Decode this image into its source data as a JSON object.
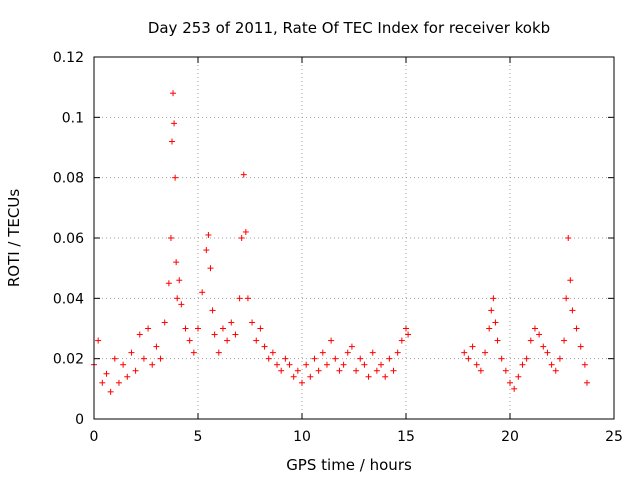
{
  "chart_data": {
    "type": "scatter",
    "title": "Day 253 of 2011, Rate Of TEC Index for receiver kokb",
    "xlabel": "GPS time / hours",
    "ylabel": "ROTI / TECUs",
    "xlim": [
      0,
      25
    ],
    "ylim": [
      0,
      0.12
    ],
    "xticks": [
      "0",
      "5",
      "10",
      "15",
      "20",
      "25"
    ],
    "yticks": [
      "0",
      "0.02",
      "0.04",
      "0.06",
      "0.08",
      "0.1",
      "0.12"
    ],
    "grid": true,
    "marker": "+",
    "series_color": "#ff0000",
    "series": [
      {
        "name": "",
        "x": [
          0.0,
          0.2,
          0.4,
          0.6,
          0.8,
          1.0,
          1.2,
          1.4,
          1.6,
          1.8,
          2.0,
          2.2,
          2.4,
          2.6,
          2.8,
          3.0,
          3.2,
          3.4,
          3.6,
          3.7,
          3.75,
          3.8,
          3.85,
          3.9,
          3.95,
          4.0,
          4.1,
          4.2,
          4.4,
          4.6,
          4.8,
          5.0,
          5.2,
          5.4,
          5.5,
          5.6,
          5.7,
          5.8,
          6.0,
          6.2,
          6.4,
          6.6,
          6.8,
          7.0,
          7.1,
          7.2,
          7.3,
          7.4,
          7.6,
          7.8,
          8.0,
          8.2,
          8.4,
          8.6,
          8.8,
          9.0,
          9.2,
          9.4,
          9.6,
          9.8,
          10.0,
          10.2,
          10.4,
          10.6,
          10.8,
          11.0,
          11.2,
          11.4,
          11.6,
          11.8,
          12.0,
          12.2,
          12.4,
          12.6,
          12.8,
          13.0,
          13.2,
          13.4,
          13.6,
          13.8,
          14.0,
          14.2,
          14.4,
          14.6,
          14.8,
          15.0,
          15.1,
          17.8,
          18.0,
          18.2,
          18.4,
          18.6,
          18.8,
          19.0,
          19.1,
          19.2,
          19.3,
          19.4,
          19.6,
          19.8,
          20.0,
          20.2,
          20.4,
          20.6,
          20.8,
          21.0,
          21.2,
          21.4,
          21.6,
          21.8,
          22.0,
          22.2,
          22.4,
          22.6,
          22.7,
          22.8,
          22.9,
          23.0,
          23.2,
          23.4,
          23.6,
          23.7
        ],
        "y": [
          0.018,
          0.026,
          0.012,
          0.015,
          0.009,
          0.02,
          0.012,
          0.018,
          0.014,
          0.022,
          0.016,
          0.028,
          0.02,
          0.03,
          0.018,
          0.024,
          0.02,
          0.032,
          0.045,
          0.06,
          0.092,
          0.108,
          0.098,
          0.08,
          0.052,
          0.04,
          0.046,
          0.038,
          0.03,
          0.026,
          0.022,
          0.03,
          0.042,
          0.056,
          0.061,
          0.05,
          0.036,
          0.028,
          0.022,
          0.03,
          0.026,
          0.032,
          0.028,
          0.04,
          0.06,
          0.081,
          0.062,
          0.04,
          0.032,
          0.026,
          0.03,
          0.024,
          0.02,
          0.022,
          0.018,
          0.016,
          0.02,
          0.018,
          0.014,
          0.016,
          0.012,
          0.018,
          0.014,
          0.02,
          0.016,
          0.022,
          0.018,
          0.026,
          0.02,
          0.016,
          0.018,
          0.022,
          0.024,
          0.016,
          0.02,
          0.018,
          0.014,
          0.022,
          0.016,
          0.018,
          0.014,
          0.02,
          0.016,
          0.022,
          0.026,
          0.03,
          0.028,
          0.022,
          0.02,
          0.024,
          0.018,
          0.016,
          0.022,
          0.03,
          0.036,
          0.04,
          0.032,
          0.026,
          0.02,
          0.016,
          0.012,
          0.01,
          0.014,
          0.018,
          0.02,
          0.026,
          0.03,
          0.028,
          0.024,
          0.022,
          0.018,
          0.016,
          0.02,
          0.026,
          0.04,
          0.06,
          0.046,
          0.036,
          0.03,
          0.024,
          0.018,
          0.012
        ]
      }
    ]
  }
}
